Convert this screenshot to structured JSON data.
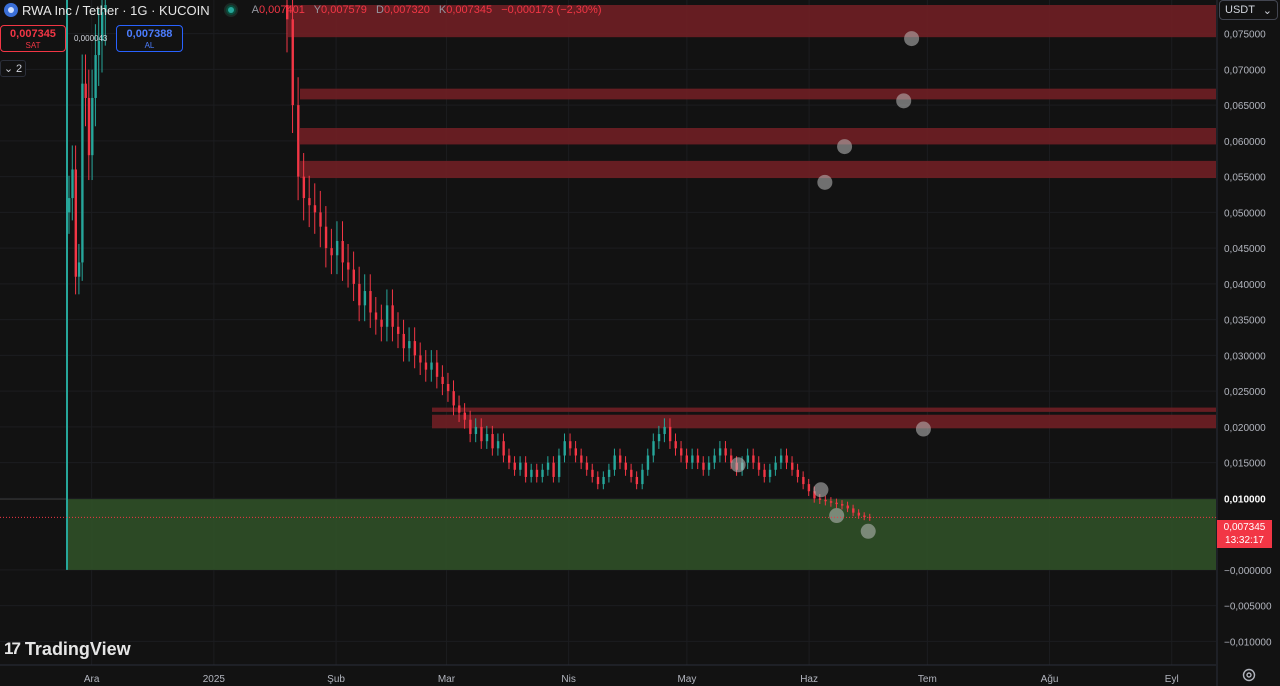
{
  "header": {
    "title": "RWA Inc / Tether · 1G · KUCOIN",
    "open_label": "A",
    "open": "0,007401",
    "high_label": "Y",
    "high": "0,007579",
    "low_label": "D",
    "low": "0,007320",
    "close_label": "K",
    "close": "0,007345",
    "change": "−0,000173 (−2,30%)"
  },
  "trade": {
    "sell_price": "0,007345",
    "sell_label": "SAT",
    "buy_price": "0,007388",
    "buy_label": "AL",
    "spread": "0,000043"
  },
  "indicators_toggle": {
    "count": "2"
  },
  "currency": {
    "label": "USDT"
  },
  "price_tag": {
    "price": "0,007345",
    "countdown": "13:32:17"
  },
  "branding": {
    "logo_mark": "17",
    "logo_text": "TradingView"
  },
  "colors": {
    "up": "#26a69a",
    "down": "#f23645",
    "resistance_zone": "#6b1f24",
    "support_zone": "#2e4d27",
    "marker": "#bdbdbd"
  },
  "chart_data": {
    "type": "candlestick",
    "y_ticks": [
      "0,075000",
      "0,070000",
      "0,065000",
      "0,060000",
      "0,055000",
      "0,050000",
      "0,045000",
      "0,040000",
      "0,035000",
      "0,030000",
      "0,025000",
      "0,020000",
      "0,015000",
      "0,010000",
      "−0,000000",
      "−0,005000",
      "−0,010000"
    ],
    "y_tick_values": [
      0.075,
      0.07,
      0.065,
      0.06,
      0.055,
      0.05,
      0.045,
      0.04,
      0.035,
      0.03,
      0.025,
      0.02,
      0.015,
      0.01,
      0,
      -0.005,
      -0.01
    ],
    "ylim": [
      -0.0133,
      0.0797
    ],
    "x_ticks": [
      "Ara",
      "2025",
      "Şub",
      "Mar",
      "Nis",
      "May",
      "Haz",
      "Tem",
      "Ağu",
      "Eyl"
    ],
    "x_tick_dates": [
      "2024-12-01",
      "2025-01-01",
      "2025-02-01",
      "2025-03-01",
      "2025-04-01",
      "2025-05-01",
      "2025-06-01",
      "2025-07-01",
      "2025-08-01",
      "2025-09-01"
    ],
    "last_price": 0.007345,
    "resistance_zones": [
      [
        0.0745,
        0.079
      ],
      [
        0.0658,
        0.0673
      ],
      [
        0.0595,
        0.0618
      ],
      [
        0.0548,
        0.0572
      ],
      [
        0.0198,
        0.0217
      ],
      [
        0.0221,
        0.0227
      ]
    ],
    "support_zone": [
      0.0,
      0.0099
    ],
    "markers": [
      {
        "date": "2025-06-27",
        "price": 0.0743
      },
      {
        "date": "2025-06-25",
        "price": 0.0656
      },
      {
        "date": "2025-06-10",
        "price": 0.0592
      },
      {
        "date": "2025-06-05",
        "price": 0.0542
      },
      {
        "date": "2025-06-30",
        "price": 0.0197
      },
      {
        "date": "2025-05-14",
        "price": 0.0147
      },
      {
        "date": "2025-06-04",
        "price": 0.0112
      },
      {
        "date": "2025-06-08",
        "price": 0.0076
      },
      {
        "date": "2025-06-16",
        "price": 0.0054
      }
    ],
    "candles_close": [
      0.052,
      0.056,
      0.041,
      0.043,
      0.068,
      0.066,
      0.058,
      0.066,
      0.072,
      0.074,
      0.078,
      0.079,
      0.077,
      0.065,
      0.055,
      0.052,
      0.051,
      0.05,
      0.048,
      0.045,
      0.044,
      0.046,
      0.043,
      0.042,
      0.04,
      0.037,
      0.039,
      0.036,
      0.035,
      0.034,
      0.037,
      0.034,
      0.033,
      0.031,
      0.032,
      0.03,
      0.029,
      0.028,
      0.029,
      0.027,
      0.026,
      0.025,
      0.023,
      0.022,
      0.021,
      0.019,
      0.02,
      0.018,
      0.019,
      0.017,
      0.018,
      0.016,
      0.015,
      0.014,
      0.015,
      0.013,
      0.014,
      0.013,
      0.014,
      0.015,
      0.013,
      0.016,
      0.018,
      0.017,
      0.016,
      0.015,
      0.014,
      0.013,
      0.012,
      0.013,
      0.014,
      0.016,
      0.015,
      0.014,
      0.013,
      0.012,
      0.014,
      0.016,
      0.018,
      0.019,
      0.02,
      0.018,
      0.017,
      0.016,
      0.015,
      0.016,
      0.015,
      0.014,
      0.015,
      0.016,
      0.017,
      0.016,
      0.015,
      0.014,
      0.015,
      0.016,
      0.015,
      0.014,
      0.013,
      0.014,
      0.015,
      0.016,
      0.015,
      0.014,
      0.013,
      0.012,
      0.011,
      0.01,
      0.0098,
      0.0096,
      0.0094,
      0.0092,
      0.009,
      0.0086,
      0.008,
      0.0076,
      0.0074,
      0.0073
    ]
  }
}
